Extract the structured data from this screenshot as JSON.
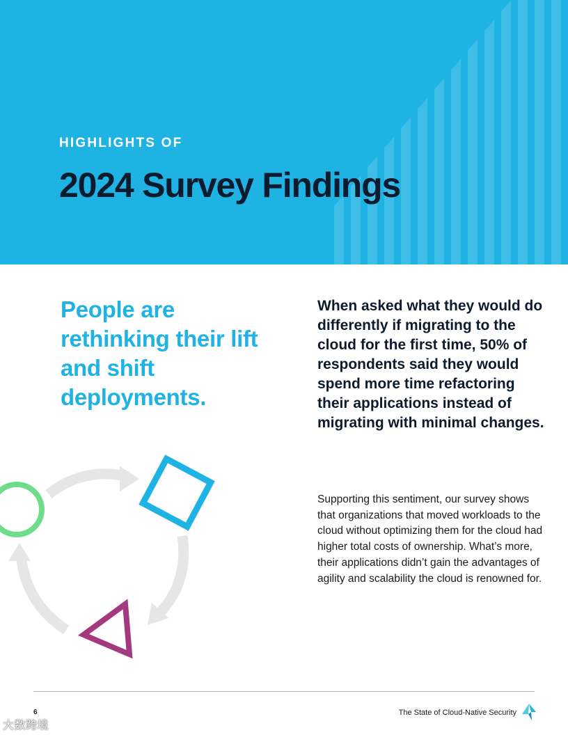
{
  "header": {
    "eyebrow": "HIGHLIGHTS OF",
    "title": "2024 Survey Findings"
  },
  "main": {
    "left_heading": "People are rethinking their lift and shift deployments.",
    "right_heading": "When asked what they would do differently if migrating to the cloud for the first time, 50% of respondents said they would spend more time refactoring their applications instead of migrating with minimal changes.",
    "body": "Supporting this sentiment, our survey shows that organizations that moved workloads to the cloud without optimizing them for the cloud had higher total costs of ownership. What’s more, their applications didn’t gain the advantages of agility and scalability the cloud is renowned for."
  },
  "footer": {
    "page_number": "6",
    "document_title": "The State of Cloud-Native Security"
  },
  "watermark": "大数跨境",
  "colors": {
    "accent_blue": "#1fb3e4",
    "dark_navy": "#0d1b2e",
    "circle_green": "#6fdc8c",
    "square_blue": "#1fb3e4",
    "triangle_magenta": "#a3397f",
    "arrow_gray": "#e6e6e6"
  },
  "icons": [
    "circle-shape",
    "square-shape",
    "triangle-shape",
    "cycle-arrows",
    "brand-logo-icon"
  ]
}
